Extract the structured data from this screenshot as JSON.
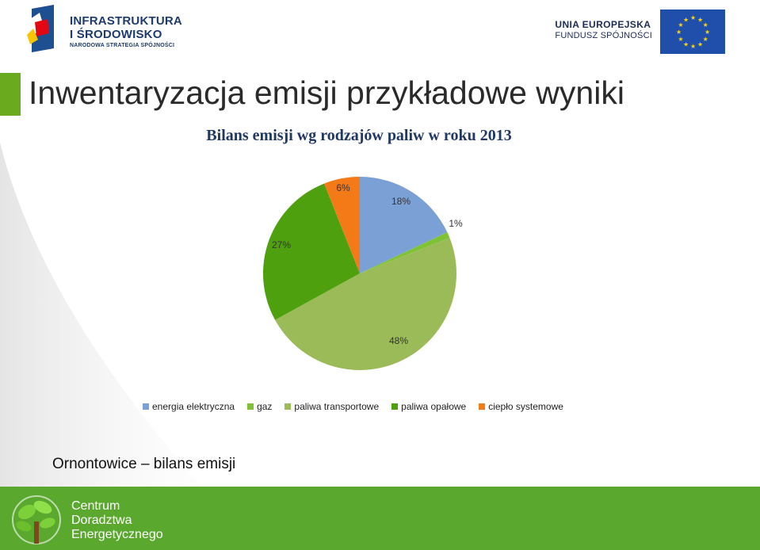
{
  "header": {
    "logo_left": {
      "line1": "INFRASTRUKTURA",
      "line2": "I ŚRODOWISKO",
      "line3": "NARODOWA STRATEGIA SPÓJNOŚCI"
    },
    "logo_right": {
      "line1": "UNIA EUROPEJSKA",
      "line2": "FUNDUSZ SPÓJNOŚCI"
    }
  },
  "slide": {
    "title": "Inwentaryzacja emisji  przykładowe wyniki",
    "subtitle": "Ornontowice – bilans emisji"
  },
  "footer": {
    "line1": "Centrum",
    "line2": "Doradztwa",
    "line3": "Energetycznego"
  },
  "colors": {
    "accent_green": "#6aaa1e",
    "footer_green": "#5aa82e",
    "title_blue": "#1f3864"
  },
  "chart_data": {
    "type": "pie",
    "title": "Bilans emisji wg rodzajów paliw w roku 2013",
    "legend_position": "bottom",
    "categories": [
      "energia elektryczna",
      "gaz",
      "paliwa transportowe",
      "paliwa opałowe",
      "ciepło systemowe"
    ],
    "values": [
      18,
      1,
      48,
      27,
      6
    ],
    "labels": [
      "18%",
      "1%",
      "48%",
      "27%",
      "6%"
    ],
    "colors": [
      "#7ba0d6",
      "#7fc235",
      "#9bbb59",
      "#4fa00e",
      "#f47a18"
    ]
  }
}
